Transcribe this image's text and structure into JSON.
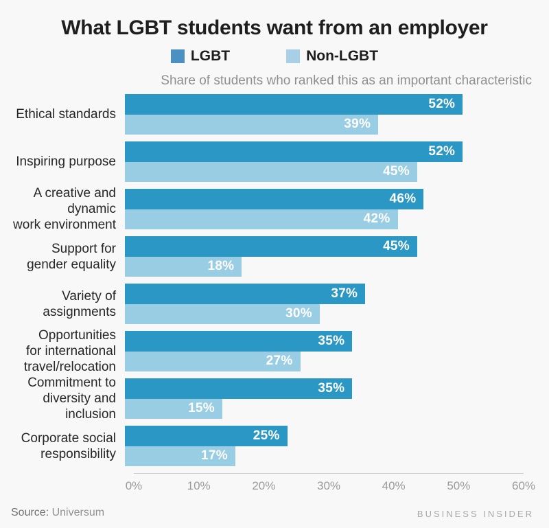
{
  "page": {
    "background": "#f8f8f8"
  },
  "header": {
    "title": "What LGBT students want from an employer",
    "subtitle": "Share of students who ranked this as an important characteristic"
  },
  "legend": [
    {
      "label": "LGBT",
      "swatch_color": "#4a90c2"
    },
    {
      "label": "Non-LGBT",
      "swatch_color": "#a7cfe5"
    }
  ],
  "chart_data": {
    "type": "bar",
    "orientation": "horizontal",
    "title": "What LGBT students want from an employer",
    "subtitle": "Share of students who ranked this as an important characteristic",
    "categories": [
      "Ethical standards",
      "Inspiring purpose",
      "A creative and dynamic work environment",
      "Support for gender equality",
      "Variety of assignments",
      "Opportunities for international travel/relocation",
      "Commitment to diversity and inclusion",
      "Corporate social responsibility"
    ],
    "category_line_breaks": [
      [
        "Ethical standards"
      ],
      [
        "Inspiring purpose"
      ],
      [
        "A creative and dynamic",
        "work environment"
      ],
      [
        "Support for",
        "gender equality"
      ],
      [
        "Variety of assignments"
      ],
      [
        "Opportunities",
        "for international",
        "travel/relocation"
      ],
      [
        "Commitment to",
        "diversity and inclusion"
      ],
      [
        "Corporate social",
        "responsibility"
      ]
    ],
    "series": [
      {
        "name": "LGBT",
        "color": "#2a97c5",
        "values": [
          52,
          52,
          46,
          45,
          37,
          35,
          35,
          25
        ]
      },
      {
        "name": "Non-LGBT",
        "color": "#99cde4",
        "values": [
          39,
          45,
          42,
          18,
          30,
          27,
          15,
          17
        ]
      }
    ],
    "value_suffix": "%",
    "value_label_color": "#ffffff",
    "xlim": [
      0,
      60
    ],
    "x_ticks": [
      "0%",
      "10%",
      "20%",
      "30%",
      "40%",
      "50%",
      "60%"
    ],
    "grid": false,
    "legend_position": "top"
  },
  "footer": {
    "source_label": "Source:",
    "source_value": "Universum",
    "brand": "BUSINESS INSIDER"
  }
}
